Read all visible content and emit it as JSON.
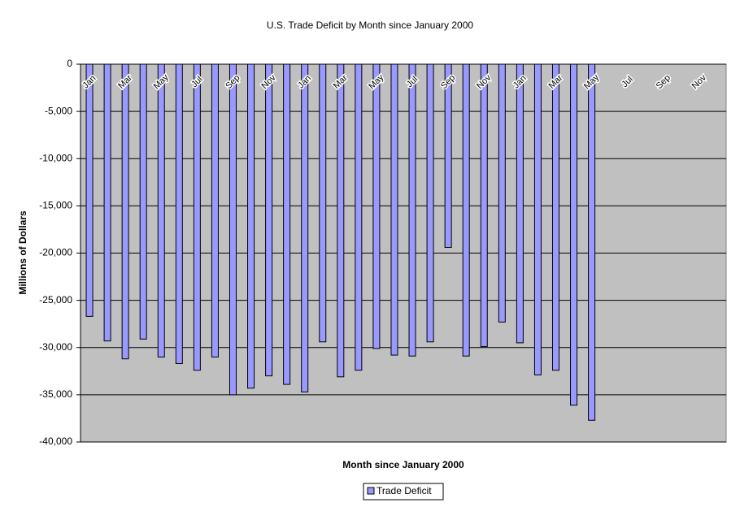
{
  "chart_data": {
    "type": "bar",
    "title": "U.S. Trade Deficit by Month since January 2000",
    "x_label": "Month since January 2000",
    "y_label": "Millions of Dollars",
    "categories": [
      "Jan",
      null,
      "Mar",
      null,
      "May",
      null,
      "Jul",
      null,
      "Sep",
      null,
      "Nov",
      null,
      "Jan",
      null,
      "Mar",
      null,
      "May",
      null,
      "Jul",
      null,
      "Sep",
      null,
      "Nov",
      null,
      "Jan",
      null,
      "Mar",
      null,
      "May",
      null,
      "Jul",
      null,
      "Sep",
      null,
      "Nov",
      null
    ],
    "series": [
      {
        "name": "Trade Deficit",
        "color": "#9999ff",
        "values": [
          -26700,
          -29300,
          -31200,
          -29100,
          -31000,
          -31700,
          -32400,
          -31000,
          -35000,
          -34300,
          -33000,
          -33900,
          -34700,
          -29400,
          -33100,
          -32400,
          -30100,
          -30800,
          -30900,
          -29400,
          -19400,
          -30900,
          -29900,
          -27300,
          -29500,
          -32900,
          -32400,
          -36100,
          -37700,
          null,
          null,
          null,
          null,
          null,
          null,
          null
        ]
      }
    ],
    "ylim": [
      -40000,
      0
    ],
    "yticks": [
      {
        "value": -40000,
        "label": "-40,000"
      },
      {
        "value": -35000,
        "label": "-35,000"
      },
      {
        "value": -30000,
        "label": "-30,000"
      },
      {
        "value": -25000,
        "label": "-25,000"
      },
      {
        "value": -20000,
        "label": "-20,000"
      },
      {
        "value": -15000,
        "label": "-15,000"
      },
      {
        "value": -10000,
        "label": "-10,000"
      },
      {
        "value": -5000,
        "label": "-5,000"
      },
      0
    ],
    "grid": true,
    "plot_background": "#c0c0c0",
    "legend": "bottom"
  }
}
